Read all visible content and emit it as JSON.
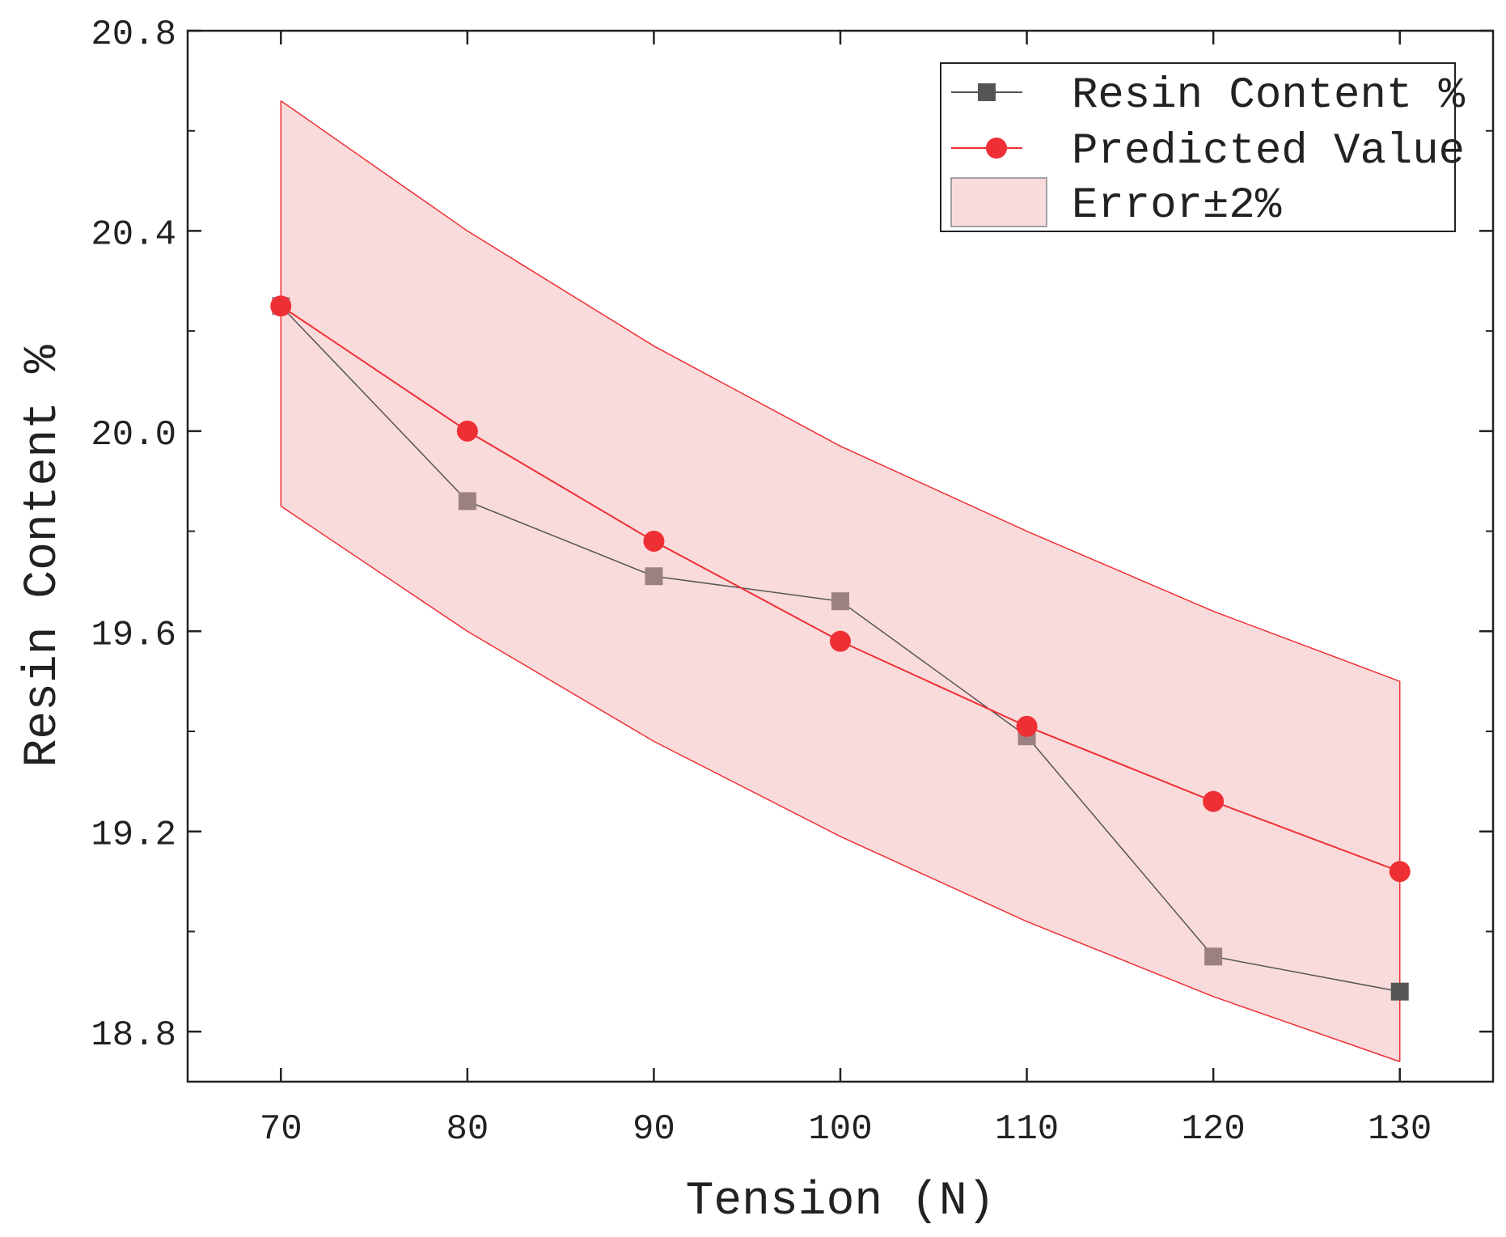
{
  "chart_data": {
    "type": "line",
    "xlabel": "Tension (N)",
    "ylabel": "Resin Content %",
    "xlim": [
      65,
      135
    ],
    "ylim": [
      18.7,
      20.8
    ],
    "x_ticks": [
      70,
      80,
      90,
      100,
      110,
      120,
      130
    ],
    "x_tick_labels": [
      "70",
      "80",
      "90",
      "100",
      "110",
      "120",
      "130"
    ],
    "y_ticks": [
      18.8,
      19.2,
      19.6,
      20.0,
      20.4,
      20.8
    ],
    "y_tick_labels": [
      "18.8",
      "19.2",
      "19.6",
      "20.0",
      "20.4",
      "20.8"
    ],
    "x": [
      70,
      80,
      90,
      100,
      110,
      120,
      130
    ],
    "series": [
      {
        "name": "Resin Content %",
        "color": "#555555",
        "marker": "square",
        "values": [
          20.25,
          19.86,
          19.71,
          19.66,
          19.39,
          18.95,
          18.88
        ]
      },
      {
        "name": "Predicted Value",
        "color": "#ee3035",
        "marker": "circle",
        "values": [
          20.25,
          20.0,
          19.78,
          19.58,
          19.41,
          19.26,
          19.12
        ]
      }
    ],
    "band": {
      "name": "Error±2%",
      "fill": "#fadbdc",
      "edge": "#ee3035",
      "upper": [
        20.66,
        20.4,
        20.17,
        19.97,
        19.8,
        19.64,
        19.5
      ],
      "lower": [
        19.85,
        19.6,
        19.38,
        19.19,
        19.02,
        18.87,
        18.74
      ]
    },
    "legend_position": "top-right"
  }
}
